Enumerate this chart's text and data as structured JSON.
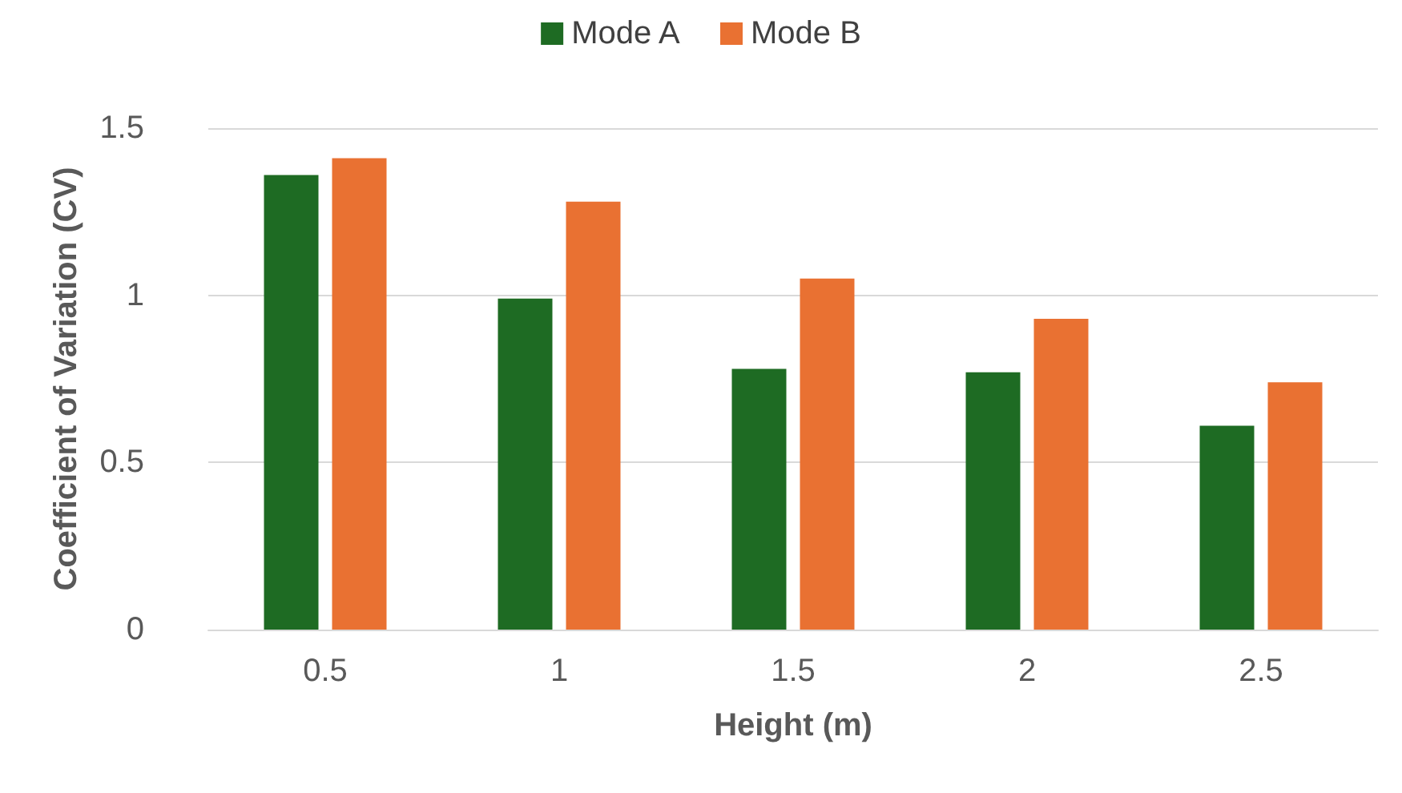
{
  "chart_data": {
    "type": "bar",
    "xlabel": "Height (m)",
    "ylabel": "Coefficient of Variation (CV)",
    "categories": [
      "0.5",
      "1",
      "1.5",
      "2",
      "2.5"
    ],
    "series": [
      {
        "name": "Mode A",
        "color": "#1e6b23",
        "values": [
          1.36,
          0.99,
          0.78,
          0.77,
          0.61
        ]
      },
      {
        "name": "Mode B",
        "color": "#e97132",
        "values": [
          1.41,
          1.28,
          1.05,
          0.93,
          0.74
        ]
      }
    ],
    "ylim": [
      0,
      1.5
    ],
    "yticks": [
      0,
      0.5,
      1,
      1.5
    ],
    "grid": "y",
    "legend": "top"
  }
}
